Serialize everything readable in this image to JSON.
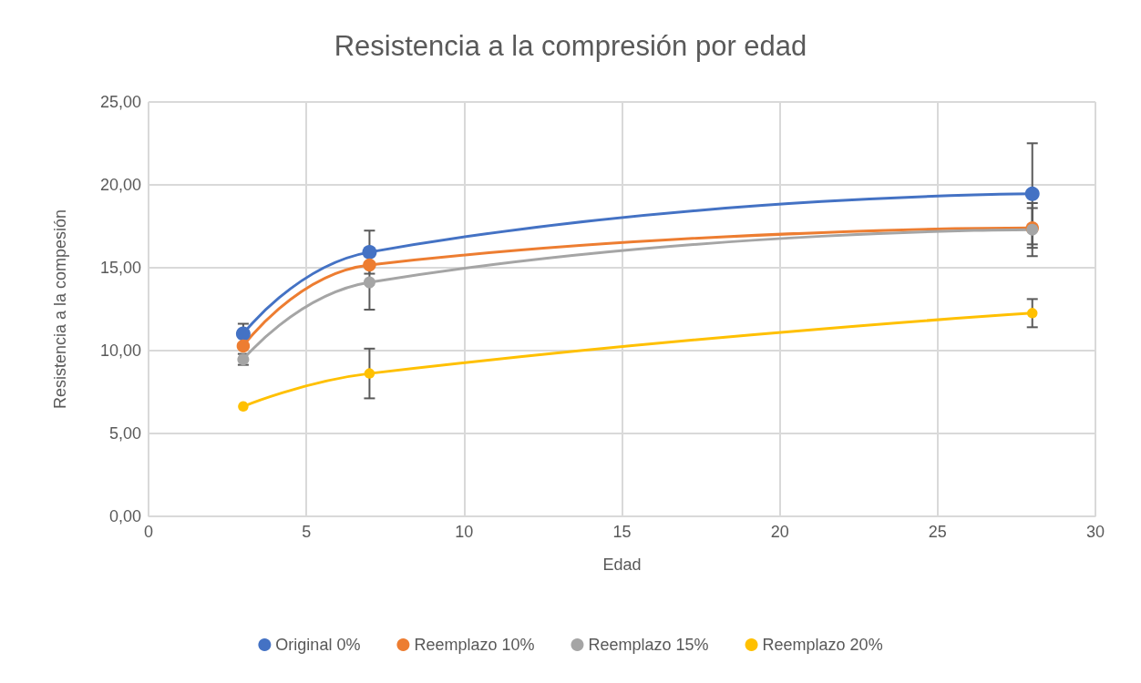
{
  "chart_data": {
    "type": "line",
    "title": "Resistencia a la compresión por edad",
    "xlabel": "Edad",
    "ylabel": "Resistencia a la compesión",
    "x": [
      3,
      7,
      28
    ],
    "series": [
      {
        "name": "Original 0%",
        "color": "#4472c4",
        "values": [
          11.02,
          15.94,
          19.46
        ],
        "errors": [
          0.6,
          1.3,
          3.05
        ]
      },
      {
        "name": "Reemplazo 10%",
        "color": "#ed7d31",
        "values": [
          10.28,
          15.17,
          17.4
        ],
        "errors": [
          null,
          null,
          1.2
        ]
      },
      {
        "name": "Reemplazo 15%",
        "color": "#a5a5a5",
        "values": [
          9.47,
          14.12,
          17.3
        ],
        "errors": [
          0.33,
          1.65,
          1.6
        ]
      },
      {
        "name": "Reemplazo 20%",
        "color": "#ffc000",
        "values": [
          6.63,
          8.62,
          12.26
        ],
        "errors": [
          null,
          1.5,
          0.85
        ]
      }
    ],
    "xlim": [
      0,
      30
    ],
    "xticks": [
      0,
      5,
      10,
      15,
      20,
      25,
      30
    ],
    "ylim": [
      0,
      25
    ],
    "yticks": [
      {
        "value": 0,
        "label": "0,00"
      },
      {
        "value": 5,
        "label": "5,00"
      },
      {
        "value": 10,
        "label": "10,00"
      },
      {
        "value": 15,
        "label": "15,00"
      },
      {
        "value": 20,
        "label": "20,00"
      },
      {
        "value": 25,
        "label": "25,00"
      }
    ],
    "grid": true,
    "legend": "bottom",
    "marker": "circle",
    "line_style": "solid"
  }
}
